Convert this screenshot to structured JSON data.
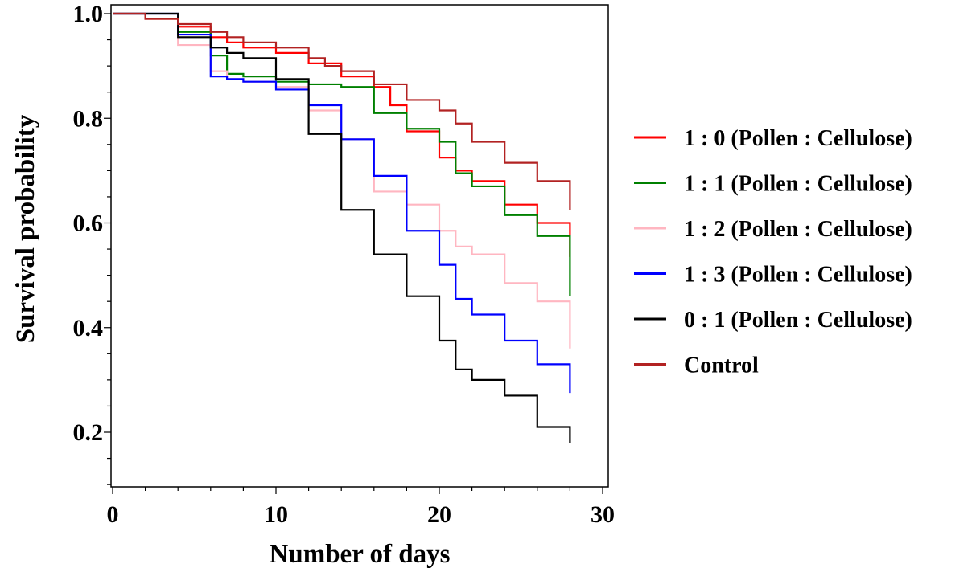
{
  "chart_data": {
    "type": "line",
    "step": true,
    "xlabel": "Number of days",
    "ylabel": "Survival probability",
    "xlim": [
      0,
      30
    ],
    "ylim": [
      0.09,
      1.0
    ],
    "xticks": [
      0,
      10,
      20,
      30
    ],
    "yticks": [
      0.2,
      0.4,
      0.6,
      0.8,
      1.0
    ],
    "xtick_labels": [
      "0",
      "10",
      "20",
      "30"
    ],
    "ytick_labels": [
      "0.2",
      "0.4",
      "0.6",
      "0.8",
      "1.0"
    ],
    "grid": false,
    "legend_position": "right",
    "series": [
      {
        "name": "1 : 0 (Pollen : Cellulose)",
        "color": "#ff0000",
        "x": [
          0,
          2,
          4,
          6,
          7,
          8,
          10,
          12,
          14,
          16,
          17,
          18,
          20,
          21,
          22,
          24,
          26,
          28,
          28
        ],
        "y": [
          1.0,
          0.99,
          0.975,
          0.955,
          0.945,
          0.935,
          0.925,
          0.905,
          0.88,
          0.86,
          0.825,
          0.775,
          0.725,
          0.7,
          0.68,
          0.635,
          0.6,
          0.59,
          0.535
        ]
      },
      {
        "name": "1 : 1 (Pollen : Cellulose)",
        "color": "#008000",
        "x": [
          0,
          4,
          6,
          7,
          8,
          10,
          12,
          14,
          16,
          18,
          20,
          21,
          22,
          24,
          26,
          28,
          28
        ],
        "y": [
          1.0,
          0.965,
          0.92,
          0.885,
          0.88,
          0.87,
          0.865,
          0.86,
          0.81,
          0.78,
          0.755,
          0.695,
          0.67,
          0.615,
          0.575,
          0.575,
          0.46
        ]
      },
      {
        "name": "1 : 2 (Pollen : Cellulose)",
        "color": "#ffb6c1",
        "x": [
          0,
          4,
          6,
          7,
          8,
          10,
          12,
          14,
          16,
          18,
          20,
          21,
          22,
          24,
          26,
          28,
          28
        ],
        "y": [
          1.0,
          0.94,
          0.89,
          0.875,
          0.87,
          0.86,
          0.815,
          0.76,
          0.66,
          0.635,
          0.585,
          0.555,
          0.54,
          0.485,
          0.45,
          0.45,
          0.36
        ]
      },
      {
        "name": "1 : 3 (Pollen : Cellulose)",
        "color": "#0000ff",
        "x": [
          0,
          4,
          6,
          7,
          8,
          10,
          12,
          14,
          16,
          18,
          20,
          21,
          22,
          24,
          26,
          28,
          28
        ],
        "y": [
          1.0,
          0.96,
          0.88,
          0.875,
          0.87,
          0.855,
          0.825,
          0.76,
          0.69,
          0.585,
          0.52,
          0.455,
          0.425,
          0.375,
          0.33,
          0.33,
          0.275
        ]
      },
      {
        "name": "0 : 1 (Pollen : Cellulose)",
        "color": "#000000",
        "x": [
          0,
          4,
          6,
          7,
          8,
          10,
          12,
          14,
          16,
          18,
          20,
          21,
          22,
          24,
          26,
          28,
          28
        ],
        "y": [
          1.0,
          0.955,
          0.935,
          0.925,
          0.915,
          0.875,
          0.77,
          0.625,
          0.54,
          0.46,
          0.375,
          0.32,
          0.3,
          0.27,
          0.21,
          0.21,
          0.18
        ]
      },
      {
        "name": "Control",
        "color": "#b22222",
        "x": [
          0,
          2,
          4,
          6,
          7,
          8,
          10,
          12,
          13,
          14,
          16,
          18,
          20,
          21,
          22,
          24,
          26,
          28,
          28
        ],
        "y": [
          1.0,
          0.99,
          0.98,
          0.965,
          0.955,
          0.945,
          0.935,
          0.915,
          0.9,
          0.89,
          0.865,
          0.835,
          0.815,
          0.79,
          0.755,
          0.715,
          0.68,
          0.675,
          0.625
        ]
      }
    ]
  }
}
